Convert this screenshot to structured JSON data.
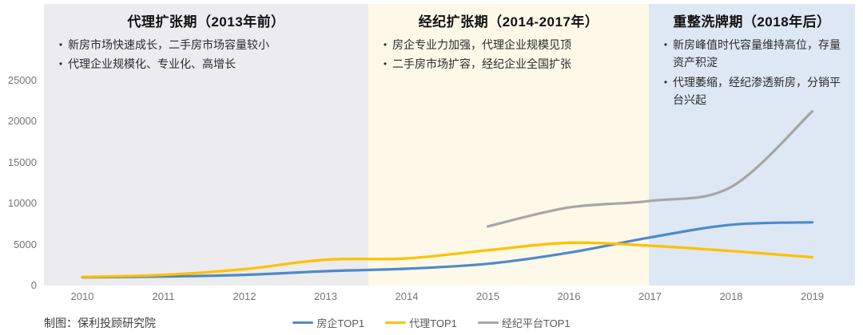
{
  "phases": [
    {
      "title": "代理扩张期（2013年前）",
      "bullets": [
        "新房市场快速成长，二手房市场容量较小",
        "代理企业规模化、专业化、高增长"
      ],
      "bg": "#ECECEE"
    },
    {
      "title": "经纪扩张期（2014-2017年）",
      "bullets": [
        "房企专业力加强，代理企业规模见顶",
        "二手房市场扩容，经纪企业全国扩张"
      ],
      "bg": "#FDF8E8"
    },
    {
      "title": "重整洗牌期（2018年后）",
      "bullets": [
        "新房峰值时代容量维持高位，存量资产积淀",
        "代理萎缩，经纪渗透新房，分销平台兴起"
      ],
      "bg": "#DDE8F4"
    }
  ],
  "footer": {
    "credit": "制图：保利投顾研究院"
  },
  "chart_data": {
    "type": "line",
    "x": [
      2010,
      2011,
      2012,
      2013,
      2014,
      2015,
      2016,
      2017,
      2018,
      2019
    ],
    "series": [
      {
        "name": "房企TOP1",
        "color": "#4E8AC8",
        "values": [
          1000,
          1100,
          1300,
          1750,
          2050,
          2650,
          4000,
          5850,
          7400,
          7700
        ]
      },
      {
        "name": "代理TOP1",
        "color": "#FFC000",
        "values": [
          1050,
          1300,
          2000,
          3150,
          3300,
          4300,
          5200,
          4850,
          4200,
          3450
        ]
      },
      {
        "name": "经纪平台TOP1",
        "color": "#A6A6A6",
        "values": [
          null,
          null,
          null,
          null,
          null,
          7200,
          9500,
          10300,
          12000,
          21200
        ]
      }
    ],
    "title": "",
    "xlabel": "",
    "ylabel": "",
    "ylim": [
      0,
      25000
    ],
    "yticks": [
      0,
      5000,
      10000,
      15000,
      20000,
      25000
    ],
    "grid": false,
    "legend_position": "bottom"
  }
}
